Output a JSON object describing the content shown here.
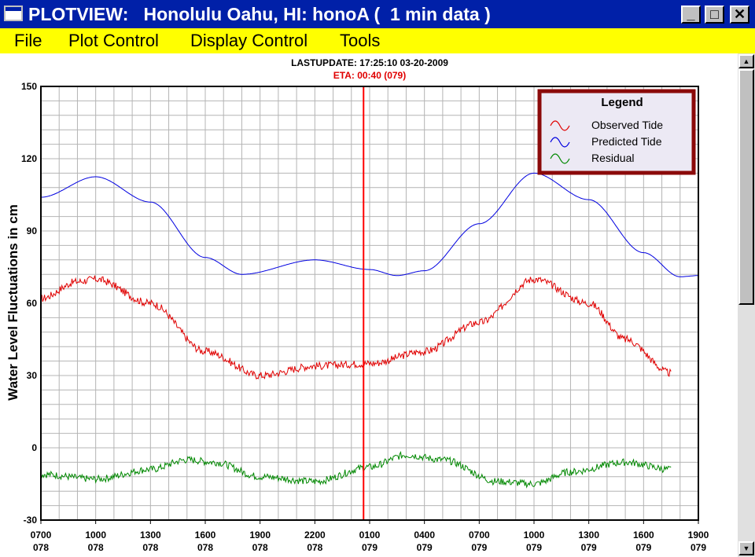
{
  "window": {
    "title": "PLOTVIEW:   Honolulu Oahu, HI: honoA (  1 min data )",
    "minimize_glyph": "_",
    "maximize_glyph": "□",
    "close_glyph": "✕"
  },
  "menu": [
    "File",
    "Plot Control",
    "Display Control",
    "Tools"
  ],
  "scrollbar": {
    "up_glyph": "▲",
    "down_glyph": "▼"
  },
  "plot": {
    "last_update": "LASTUPDATE: 17:25:10  03-20-2009",
    "eta": "ETA: 00:40 (079)",
    "ylabel": "Water Level Fluctuations in cm",
    "legend_title": "Legend",
    "colors": {
      "observed": "#e00000",
      "predicted": "#0000e0",
      "residual": "#008800",
      "eta_line": "#ff0000",
      "legend_border": "#8b0a0a"
    }
  },
  "chart_data": {
    "type": "line",
    "ylim": [
      -30,
      150
    ],
    "yticks": [
      150,
      120,
      90,
      60,
      30,
      0,
      -30
    ],
    "x_ticks": [
      {
        "time": "0700",
        "day": "078"
      },
      {
        "time": "1000",
        "day": "078"
      },
      {
        "time": "1300",
        "day": "078"
      },
      {
        "time": "1600",
        "day": "078"
      },
      {
        "time": "1900",
        "day": "078"
      },
      {
        "time": "2200",
        "day": "078"
      },
      {
        "time": "0100",
        "day": "079"
      },
      {
        "time": "0400",
        "day": "079"
      },
      {
        "time": "0700",
        "day": "079"
      },
      {
        "time": "1000",
        "day": "079"
      },
      {
        "time": "1300",
        "day": "079"
      },
      {
        "time": "1600",
        "day": "079"
      },
      {
        "time": "1900",
        "day": "079"
      }
    ],
    "eta_marker": {
      "time": "0040",
      "day": "079"
    },
    "grid": true,
    "legend_placement": "top-right",
    "series": [
      {
        "name": "Observed Tide",
        "key": "observed",
        "noise": 1.6,
        "x": [
          "0700 078",
          "0900 078",
          "1000 078",
          "1300 078",
          "1600 078",
          "1900 078",
          "2200 078",
          "0100 079",
          "0400 079",
          "0700 079",
          "1000 079",
          "1300 079",
          "1500 079",
          "1730 079"
        ],
        "values": [
          62,
          69,
          70,
          60,
          40,
          30,
          34,
          35,
          40,
          52,
          70,
          60,
          45,
          31
        ]
      },
      {
        "name": "Predicted Tide",
        "key": "predicted",
        "noise": 0,
        "x": [
          "0700 078",
          "1000 078",
          "1300 078",
          "1600 078",
          "1800 078",
          "2200 078",
          "0100 079",
          "0230 079",
          "0400 079",
          "0700 079",
          "1000 079",
          "1300 079",
          "1600 079",
          "1800 079",
          "1900 079"
        ],
        "values": [
          104,
          112.5,
          102,
          79,
          72,
          78,
          74,
          71.5,
          73.5,
          93,
          114,
          103,
          81,
          71,
          71.5
        ]
      },
      {
        "name": "Residual",
        "key": "residual",
        "noise": 1.5,
        "x": [
          "0700 078",
          "1000 078",
          "1300 078",
          "1500 078",
          "1630 078",
          "1900 078",
          "2200 078",
          "0100 079",
          "0300 079",
          "0500 079",
          "0800 079",
          "1000 079",
          "1200 079",
          "1500 079",
          "1730 079"
        ],
        "values": [
          -11,
          -13,
          -9,
          -5,
          -6,
          -12,
          -14,
          -8,
          -3,
          -5,
          -14,
          -15,
          -10,
          -6,
          -9
        ]
      }
    ]
  }
}
